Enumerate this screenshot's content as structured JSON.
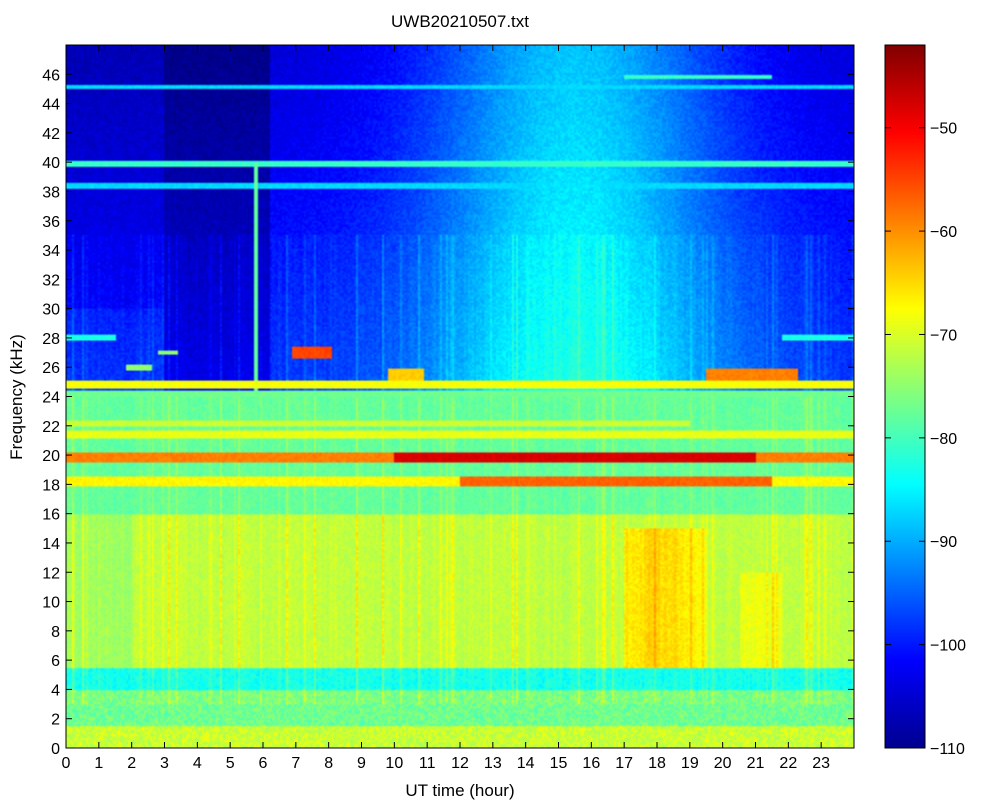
{
  "chart_data": {
    "type": "heatmap",
    "title": "UWB20210507.txt",
    "xlabel": "UT time (hour)",
    "ylabel": "Frequency (kHz)",
    "xlim": [
      0,
      24
    ],
    "ylim": [
      0,
      48
    ],
    "x_ticks": [
      "0",
      "1",
      "2",
      "3",
      "4",
      "5",
      "6",
      "7",
      "8",
      "9",
      "10",
      "11",
      "12",
      "13",
      "14",
      "15",
      "16",
      "17",
      "18",
      "19",
      "20",
      "21",
      "22",
      "23"
    ],
    "y_ticks": [
      "0",
      "2",
      "4",
      "6",
      "8",
      "10",
      "12",
      "14",
      "16",
      "18",
      "20",
      "22",
      "24",
      "26",
      "28",
      "30",
      "32",
      "34",
      "36",
      "38",
      "40",
      "42",
      "44",
      "46"
    ],
    "colorbar": {
      "range": [
        -110,
        -42
      ],
      "ticks": [
        "-50",
        "-60",
        "-70",
        "-80",
        "-90",
        "-100",
        "-110"
      ],
      "colormap": "jet"
    },
    "features": [
      {
        "feature": "strong narrowband transmitter",
        "freq_khz": 19.8,
        "time_h": [
          0,
          24
        ],
        "level_db": -52
      },
      {
        "feature": "narrowband transmitter",
        "freq_khz": 18.2,
        "time_h": [
          0,
          24
        ],
        "level_db": -60
      },
      {
        "feature": "narrowband transmitter",
        "freq_khz": 21.4,
        "time_h": [
          0,
          24
        ],
        "level_db": -70
      },
      {
        "feature": "narrowband transmitter",
        "freq_khz": 22.2,
        "time_h": [
          0,
          19
        ],
        "level_db": -72
      },
      {
        "feature": "narrowband transmitter",
        "freq_khz": 24.8,
        "time_h": [
          0,
          24
        ],
        "level_db": -68
      },
      {
        "feature": "narrowband transmitter",
        "freq_khz": 25.5,
        "time_h": [
          19.5,
          22.3
        ],
        "level_db": -58
      },
      {
        "feature": "narrowband transmitter",
        "freq_khz": 27.0,
        "time_h": [
          6.9,
          8.1
        ],
        "level_db": -57
      },
      {
        "feature": "narrowband transmitter",
        "freq_khz": 39.9,
        "time_h": [
          0,
          24
        ],
        "level_db": -82
      },
      {
        "feature": "broadband emission",
        "freq_khz": [
          4,
          16
        ],
        "time_h": [
          0,
          24
        ],
        "level_db": -72
      },
      {
        "feature": "intensified broadband emission",
        "freq_khz": [
          5,
          16
        ],
        "time_h": [
          17,
          19.5
        ],
        "level_db": -64
      }
    ]
  }
}
